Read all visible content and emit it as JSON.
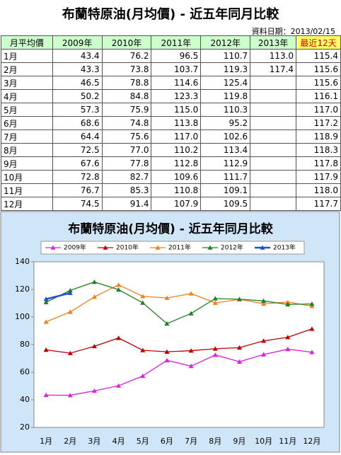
{
  "header": {
    "title": "布蘭特原油(月均價) - 近五年同月比較",
    "date": "資料日期：2013/02/15"
  },
  "table": {
    "columns": [
      "月平均價",
      "2009年",
      "2010年",
      "2011年",
      "2012年",
      "2013年",
      "最近12天"
    ],
    "rows": [
      [
        "1月",
        "43.4",
        "76.2",
        "96.5",
        "110.7",
        "113.0",
        "115.4"
      ],
      [
        "2月",
        "43.3",
        "73.8",
        "103.7",
        "119.3",
        "117.4",
        "115.6"
      ],
      [
        "3月",
        "46.5",
        "78.8",
        "114.6",
        "125.4",
        null,
        "115.6"
      ],
      [
        "4月",
        "50.2",
        "84.8",
        "123.3",
        "119.8",
        null,
        "116.1"
      ],
      [
        "5月",
        "57.3",
        "75.9",
        "115.0",
        "110.3",
        null,
        "117.0"
      ],
      [
        "6月",
        "68.6",
        "74.8",
        "113.8",
        "95.2",
        null,
        "117.2"
      ],
      [
        "7月",
        "64.4",
        "75.6",
        "117.0",
        "102.6",
        null,
        "118.9"
      ],
      [
        "8月",
        "72.5",
        "77.0",
        "110.2",
        "113.4",
        null,
        "118.3"
      ],
      [
        "9月",
        "67.6",
        "77.8",
        "112.8",
        "112.9",
        null,
        "117.8"
      ],
      [
        "10月",
        "72.8",
        "82.7",
        "109.6",
        "111.7",
        null,
        "117.9"
      ],
      [
        "11月",
        "76.7",
        "85.3",
        "110.8",
        "109.1",
        null,
        "118.0"
      ],
      [
        "12月",
        "74.5",
        "91.4",
        "107.9",
        "109.5",
        null,
        "117.7"
      ]
    ]
  },
  "chart_data": {
    "type": "line",
    "title": "布蘭特原油(月均價) - 近五年同月比較",
    "categories": [
      "1月",
      "2月",
      "3月",
      "4月",
      "5月",
      "6月",
      "7月",
      "8月",
      "9月",
      "10月",
      "11月",
      "12月"
    ],
    "ylim": [
      20,
      140
    ],
    "yticks": [
      20,
      40,
      60,
      80,
      100,
      120,
      140
    ],
    "legend": "top",
    "series": [
      {
        "name": "2009年",
        "color": "#e020e0",
        "values": [
          43.4,
          43.3,
          46.5,
          50.2,
          57.3,
          68.6,
          64.4,
          72.5,
          67.6,
          72.8,
          76.7,
          74.5
        ]
      },
      {
        "name": "2010年",
        "color": "#c00000",
        "values": [
          76.2,
          73.8,
          78.8,
          84.8,
          75.9,
          74.8,
          75.6,
          77.0,
          77.8,
          82.7,
          85.3,
          91.4
        ]
      },
      {
        "name": "2011年",
        "color": "#f08020",
        "values": [
          96.5,
          103.7,
          114.6,
          123.3,
          115.0,
          113.8,
          117.0,
          110.2,
          112.8,
          109.6,
          110.8,
          107.9
        ]
      },
      {
        "name": "2012年",
        "color": "#208020",
        "values": [
          110.7,
          119.3,
          125.4,
          119.8,
          110.3,
          95.2,
          102.6,
          113.4,
          112.9,
          111.7,
          109.1,
          109.5
        ]
      },
      {
        "name": "2013年",
        "color": "#2050d0",
        "values": [
          113.0,
          117.4,
          null,
          null,
          null,
          null,
          null,
          null,
          null,
          null,
          null,
          null
        ]
      }
    ]
  }
}
